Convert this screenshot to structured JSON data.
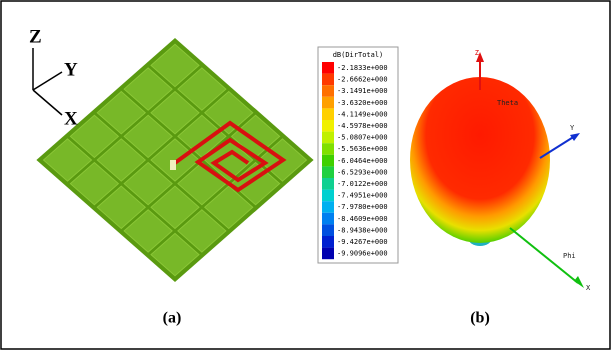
{
  "panel_a": {
    "axes": {
      "z": "Z",
      "y": "Y",
      "x": "X"
    },
    "caption": "(a)"
  },
  "legend": {
    "title": "dB(DirTotal)",
    "entries": [
      "-2.1833e+000",
      "-2.6662e+000",
      "-3.1491e+000",
      "-3.6320e+000",
      "-4.1149e+000",
      "-4.5978e+000",
      "-5.0807e+000",
      "-5.5636e+000",
      "-6.0464e+000",
      "-6.5293e+000",
      "-7.0122e+000",
      "-7.4951e+000",
      "-7.9780e+000",
      "-8.4609e+000",
      "-8.9438e+000",
      "-9.4267e+000",
      "-9.9096e+000"
    ]
  },
  "panel_b": {
    "axes": {
      "z": "Z",
      "theta": "Theta",
      "y": "Y",
      "phi": "Phi",
      "x": "X"
    },
    "caption": "(b)"
  }
}
